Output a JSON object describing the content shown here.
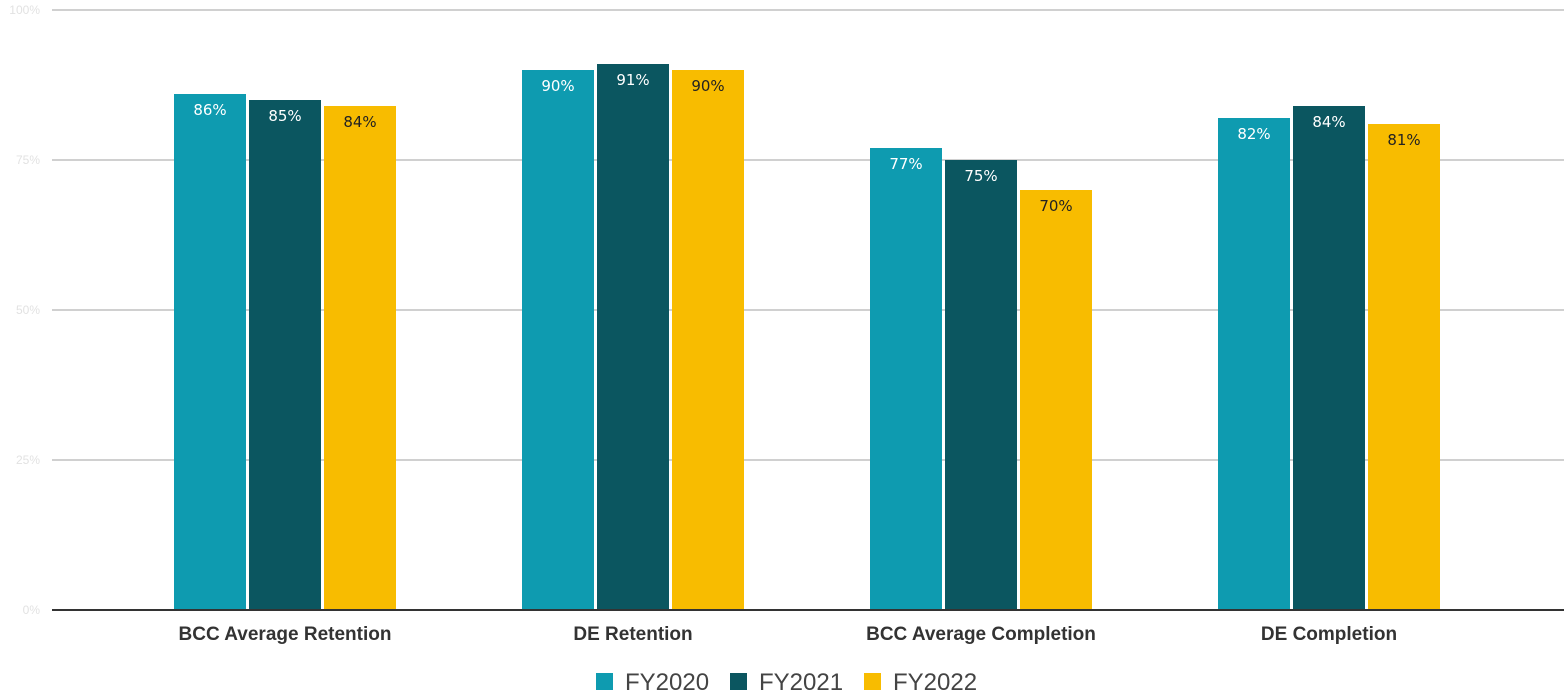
{
  "chart_data": {
    "type": "bar",
    "categories": [
      "BCC Average Retention",
      "DE Retention",
      "BCC Average Completion",
      "DE Completion"
    ],
    "series": [
      {
        "name": "FY2020",
        "values": [
          86,
          90,
          77,
          82
        ],
        "labels": [
          "86%",
          "90%",
          "77%",
          "82%"
        ],
        "color": "#0e9bb0",
        "label_color": "#ffffff"
      },
      {
        "name": "FY2021",
        "values": [
          85,
          91,
          75,
          84
        ],
        "labels": [
          "85%",
          "91%",
          "75%",
          "84%"
        ],
        "color": "#0b5660",
        "label_color": "#ffffff"
      },
      {
        "name": "FY2022",
        "values": [
          84,
          90,
          70,
          81
        ],
        "labels": [
          "84%",
          "90%",
          "70%",
          "81%"
        ],
        "color": "#f8bc00",
        "label_color": "#222222"
      }
    ],
    "ylim": [
      0,
      100
    ],
    "yticks": [
      "0%",
      "25%",
      "50%",
      "75%",
      "100%"
    ],
    "ytick_values": [
      0,
      25,
      50,
      75,
      100
    ],
    "grid": true,
    "legend_position": "bottom"
  }
}
